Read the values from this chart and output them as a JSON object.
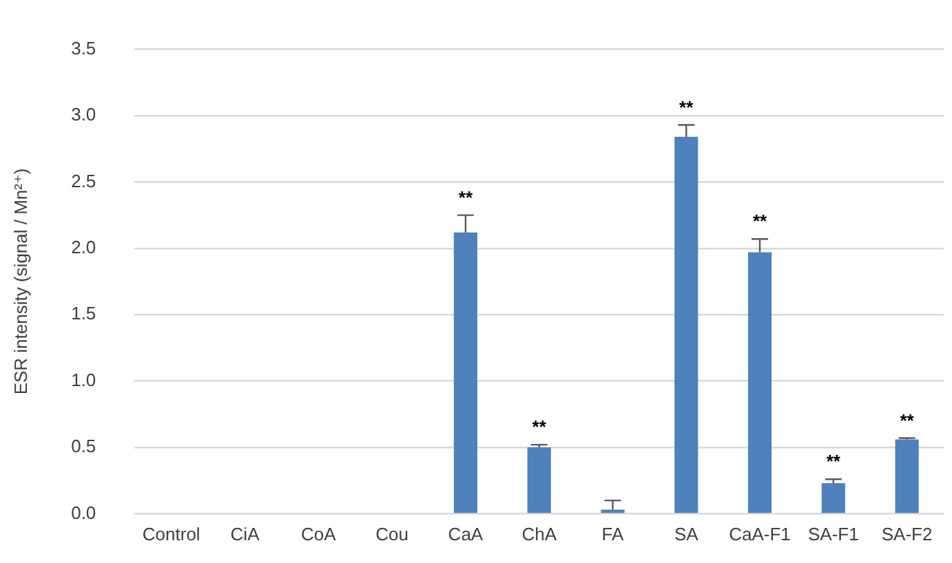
{
  "chart_data": {
    "type": "bar",
    "ylabel": "ESR intensity (signal / Mn²⁺)",
    "categories": [
      "Control",
      "CiA",
      "CoA",
      "Cou",
      "CaA",
      "ChA",
      "FA",
      "SA",
      "CaA-F1",
      "SA-F1",
      "SA-F2"
    ],
    "values": [
      0,
      0,
      0,
      0,
      2.12,
      0.5,
      0.03,
      2.84,
      1.97,
      0.23,
      0.56
    ],
    "errors": [
      null,
      null,
      null,
      null,
      0.13,
      0.02,
      0.07,
      0.09,
      0.1,
      0.03,
      0.01
    ],
    "color": "#4f81bd",
    "ylim": [
      0,
      3.5
    ],
    "yticks": [
      {
        "value": 0,
        "label": "0.0"
      },
      {
        "value": 0.5,
        "label": "0.5"
      },
      {
        "value": 1,
        "label": "1.0"
      },
      {
        "value": 1.5,
        "label": "1.5"
      },
      {
        "value": 2,
        "label": "2.0"
      },
      {
        "value": 2.5,
        "label": "2.5"
      },
      {
        "value": 3,
        "label": "3.0"
      },
      {
        "value": 3.5,
        "label": "3.5"
      }
    ],
    "grid": "y",
    "annotations": [
      {
        "text": "**",
        "x": "CaA",
        "y": 2.25
      },
      {
        "text": "**",
        "x": "ChA",
        "y": 0.52
      },
      {
        "text": "**",
        "x": "SA",
        "y": 2.93
      },
      {
        "text": "**",
        "x": "CaA-F1",
        "y": 2.07
      },
      {
        "text": "**",
        "x": "SA-F1",
        "y": 0.26
      },
      {
        "text": "**",
        "x": "SA-F2",
        "y": 0.57
      }
    ]
  }
}
